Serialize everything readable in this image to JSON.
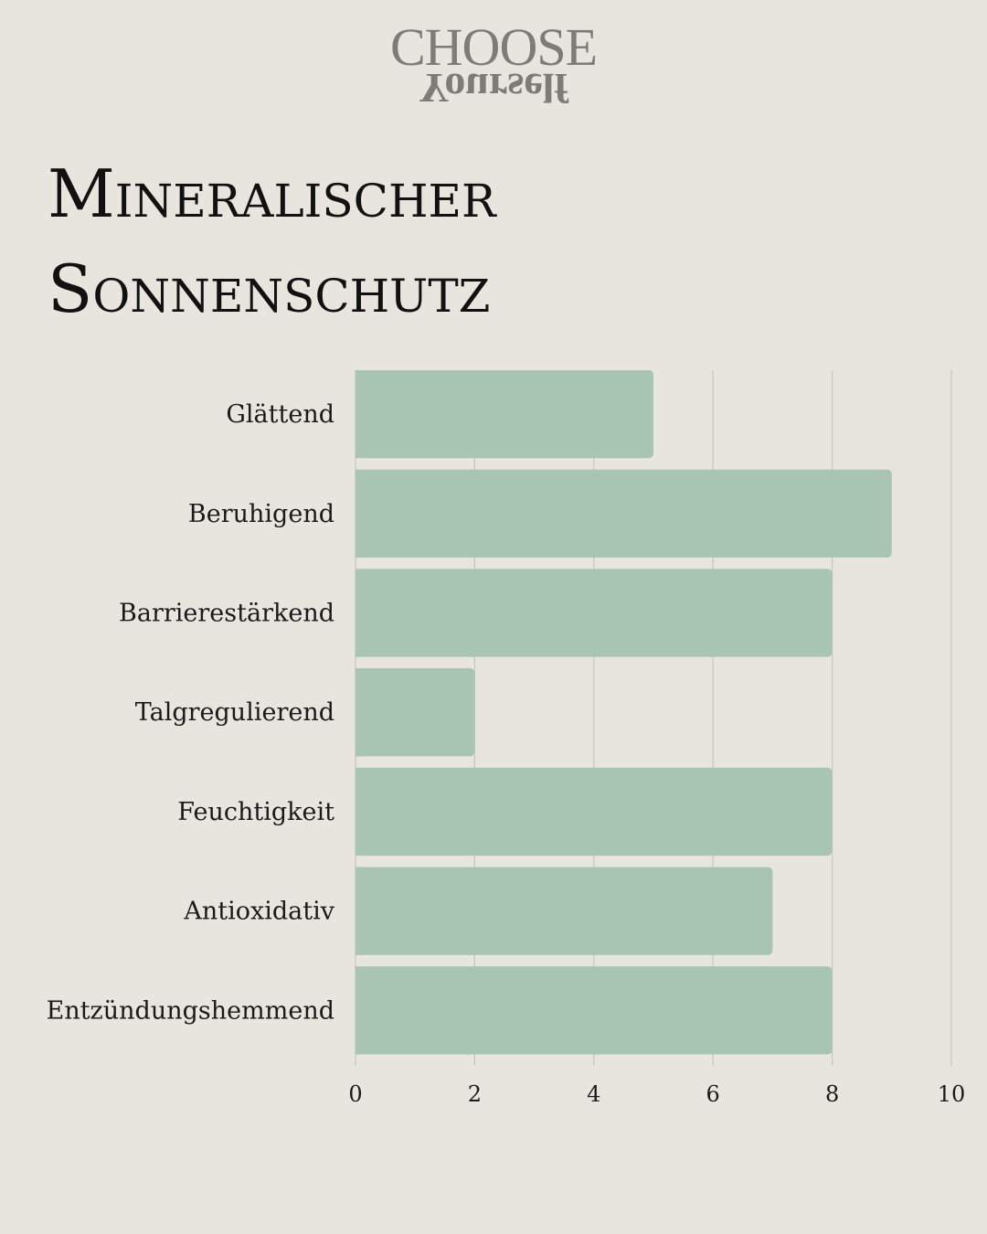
{
  "logo": {
    "top": "CHOOSE",
    "bottom": "Yourself"
  },
  "title": "Mineralischer\nSonnenschutz",
  "colors": {
    "background": "#e8e5df",
    "bar": "#a8c4b3",
    "grid": "#c7c4bd",
    "text": "#111111",
    "logo": "#7d7c78"
  },
  "chart_data": {
    "type": "bar",
    "orientation": "horizontal",
    "title": "Mineralischer Sonnenschutz",
    "categories": [
      "Glättend",
      "Beruhigend",
      "Barrierestärkend",
      "Talgregulierend",
      "Feuchtigkeit",
      "Antioxidativ",
      "Entzündungshemmend"
    ],
    "values": [
      5,
      9,
      8,
      2,
      8,
      7,
      8
    ],
    "xlim": [
      0,
      10
    ],
    "xticks": [
      0,
      2,
      4,
      6,
      8,
      10
    ],
    "grid": true,
    "xlabel": "",
    "ylabel": ""
  }
}
